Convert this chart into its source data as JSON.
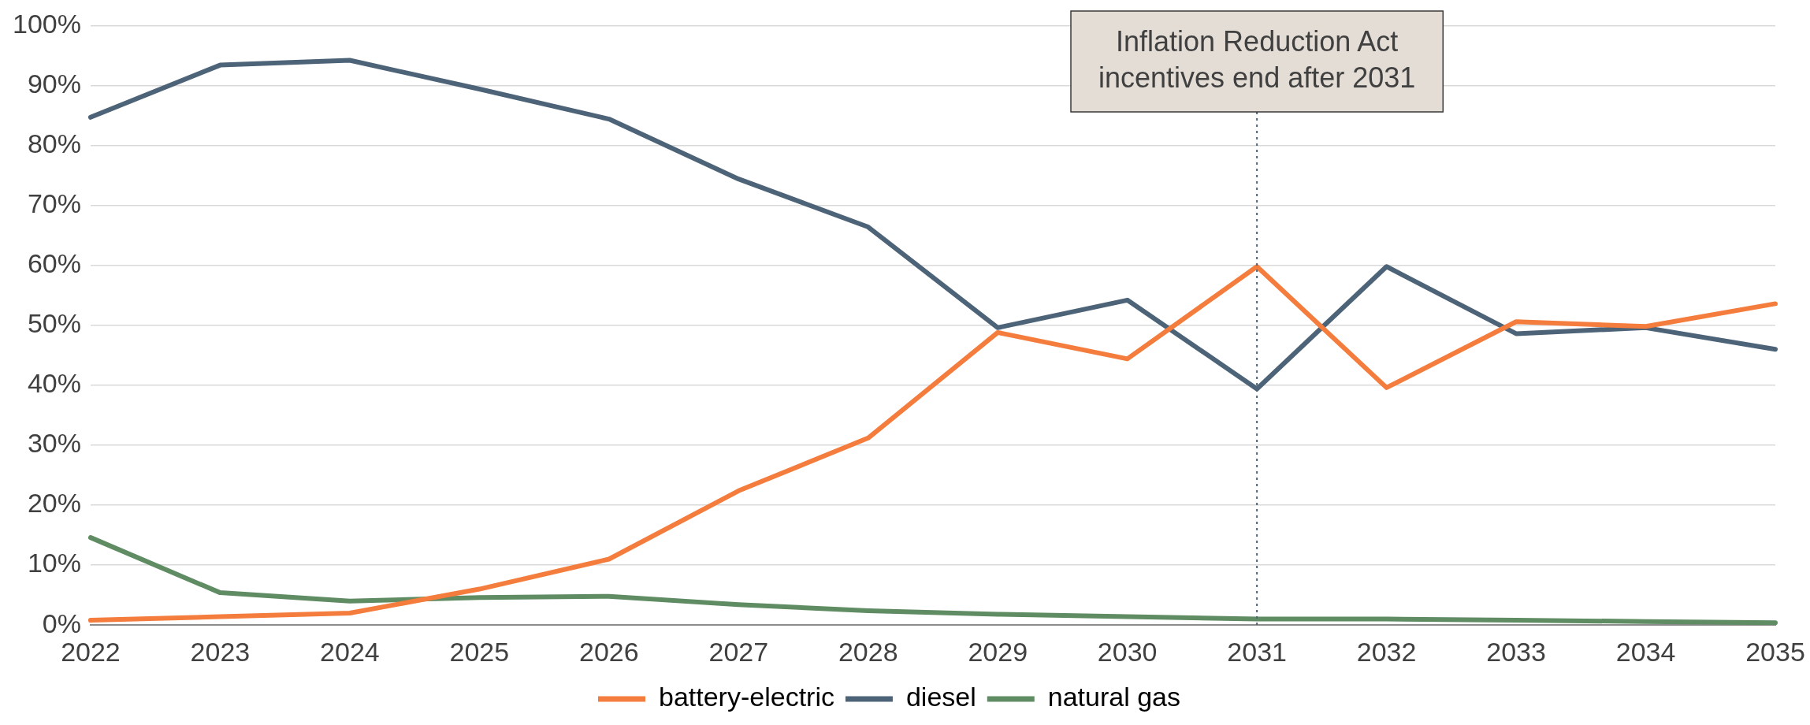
{
  "chart_data": {
    "type": "line",
    "categories": [
      "2022",
      "2023",
      "2024",
      "2025",
      "2026",
      "2027",
      "2028",
      "2029",
      "2030",
      "2031",
      "2032",
      "2033",
      "2034",
      "2035"
    ],
    "series": [
      {
        "name": "battery-electric",
        "color": "#f47c3c",
        "values": [
          0.8,
          1.4,
          2,
          6,
          11,
          22.4,
          31.2,
          48.8,
          44.4,
          59.8,
          39.6,
          50.6,
          49.8,
          53.6
        ]
      },
      {
        "name": "diesel",
        "color": "#4d6378",
        "values": [
          84.7,
          93.4,
          94.2,
          89.4,
          84.4,
          74.4,
          66.4,
          49.6,
          54.2,
          39.4,
          59.8,
          48.6,
          49.6,
          46
        ]
      },
      {
        "name": "natural gas",
        "color": "#5f8c62",
        "values": [
          14.6,
          5.4,
          4,
          4.6,
          4.8,
          3.4,
          2.4,
          1.8,
          1.4,
          1,
          1,
          0.8,
          0.6,
          0.4
        ]
      }
    ],
    "ylim": [
      0,
      100
    ],
    "yticks": [
      {
        "value": 0,
        "label": "0%"
      },
      {
        "value": 10,
        "label": "10%"
      },
      {
        "value": 20,
        "label": "20%"
      },
      {
        "value": 30,
        "label": "30%"
      },
      {
        "value": 40,
        "label": "40%"
      },
      {
        "value": 50,
        "label": "50%"
      },
      {
        "value": 60,
        "label": "60%"
      },
      {
        "value": 70,
        "label": "70%"
      },
      {
        "value": 80,
        "label": "80%"
      },
      {
        "value": 90,
        "label": "90%"
      },
      {
        "value": 100,
        "label": "100%"
      }
    ],
    "grid": "y",
    "legend": "bottom",
    "marker": "none",
    "line_style": "solid",
    "ref_lines": [
      {
        "axis": "x",
        "value": "2031",
        "label": "Inflation Reduction Act incentives end after 2031",
        "line_style": "dotted",
        "color": "#4d6378"
      }
    ]
  }
}
